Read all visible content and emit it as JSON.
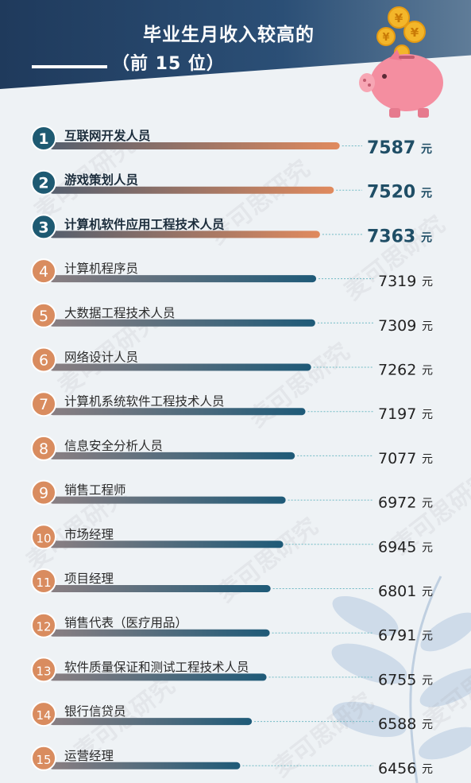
{
  "header": {
    "title_line1": "毕业生月收入较高的",
    "title_line2": "（前 15 位）"
  },
  "watermark_text": "麦可思研究",
  "chart_data": {
    "type": "bar",
    "orientation": "horizontal",
    "unit": "元",
    "categories": [
      "互联网开发人员",
      "游戏策划人员",
      "计算机软件应用工程技术人员",
      "计算机程序员",
      "大数据工程技术人员",
      "网络设计人员",
      "计算机系统软件工程技术人员",
      "信息安全分析人员",
      "销售工程师",
      "市场经理",
      "项目经理",
      "销售代表（医疗用品）",
      "软件质量保证和测试工程技术人员",
      "银行信贷员",
      "运营经理"
    ],
    "ranks": [
      "1",
      "2",
      "3",
      "4",
      "5",
      "6",
      "7",
      "8",
      "9",
      "10",
      "11",
      "12",
      "13",
      "14",
      "15"
    ],
    "value_labels": [
      "7587",
      "7520",
      "7363",
      "7319",
      "7309",
      "7262",
      "7197",
      "7077",
      "6972",
      "6945",
      "6801",
      "6791",
      "6755",
      "6588",
      "6456"
    ],
    "values": [
      7587,
      7520,
      7363,
      7319,
      7309,
      7262,
      7197,
      7077,
      6972,
      6945,
      6801,
      6791,
      6755,
      6588,
      6456
    ],
    "highlight_top": 3,
    "colors": {
      "top_circle": "#1e5a72",
      "rest_circle": "#d98c5f",
      "top_bar_start": "#555f6e",
      "top_bar_end": "#e08a5e",
      "rest_bar_start": "#8a7f82",
      "rest_bar_end": "#1e5a78",
      "top_value": "#1f4e66",
      "rest_value": "#222222",
      "connector": "#6fb9c4"
    }
  }
}
